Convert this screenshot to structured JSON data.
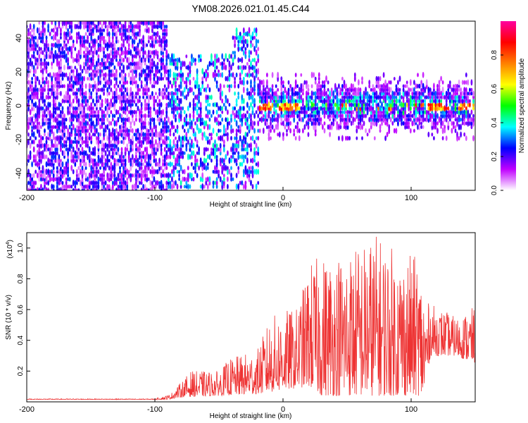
{
  "chart_data": [
    {
      "type": "heatmap",
      "title": "YM08.2026.021.01.45.C44",
      "xlabel": "Height of straight line (km)",
      "ylabel": "Frequency (Hz)",
      "xlim": [
        -200,
        150
      ],
      "ylim": [
        -50,
        50
      ],
      "x_ticks": [
        -200,
        -100,
        0,
        100
      ],
      "x_tick_labels": [
        "-200",
        "-100",
        "0",
        "100"
      ],
      "y_ticks": [
        -40,
        -20,
        0,
        20,
        40
      ],
      "y_tick_labels": [
        "-40",
        "-20",
        "0",
        "20",
        "40"
      ],
      "colorbar": {
        "label": "Normalized spectral amplitude",
        "range": [
          0.0,
          1.0
        ],
        "ticks": [
          0.0,
          0.2,
          0.4,
          0.6,
          0.8
        ],
        "tick_labels": [
          "0.0",
          "0.2",
          "0.4",
          "0.6",
          "0.8"
        ],
        "colors": [
          "#ffffff",
          "#c000ff",
          "#0000ff",
          "#00ffff",
          "#00ff00",
          "#ffff00",
          "#ff8000",
          "#ff0000",
          "#ff00a0"
        ]
      },
      "regions": [
        {
          "x_range": [
            -200,
            -90
          ],
          "freq_range": [
            -50,
            50
          ],
          "amplitude": 0.15,
          "description": "broadband noise"
        },
        {
          "x_range": [
            -90,
            -18
          ],
          "freq_range": [
            -50,
            30
          ],
          "amplitude": 0.2,
          "description": "vertical streaks"
        },
        {
          "x_range": [
            -18,
            150
          ],
          "freq_range": [
            -10,
            10
          ],
          "amplitude": 0.4,
          "description": "narrow band around 0 Hz"
        }
      ],
      "ridge": [
        {
          "x": -15,
          "f": 1,
          "a": 0.85
        },
        {
          "x": 5,
          "f": 1,
          "a": 0.8
        },
        {
          "x": 120,
          "f": 0,
          "a": 0.85
        },
        {
          "x": 145,
          "f": 0,
          "a": 0.85
        }
      ]
    },
    {
      "type": "line",
      "title": "",
      "xlabel": "Height of straight line (km)",
      "ylabel": "SNR (10 * v/v)",
      "y_multiplier": "(x10",
      "y_multiplier_exp": "4",
      "y_multiplier_close": ")",
      "xlim": [
        -200,
        150
      ],
      "ylim": [
        0,
        1.1
      ],
      "x_ticks": [
        -200,
        -100,
        0,
        100
      ],
      "x_tick_labels": [
        "-200",
        "-100",
        "0",
        "100"
      ],
      "y_ticks": [
        0.2,
        0.4,
        0.6,
        0.8,
        1.0
      ],
      "y_tick_labels": [
        "0.2",
        "0.4",
        "0.6",
        "0.8",
        "1.0"
      ],
      "color": "#ee3333",
      "envelope": [
        {
          "x": -200,
          "y": 0.02
        },
        {
          "x": -100,
          "y": 0.02
        },
        {
          "x": -88,
          "y": 0.05
        },
        {
          "x": -72,
          "y": 0.2
        },
        {
          "x": -50,
          "y": 0.2
        },
        {
          "x": -42,
          "y": 0.28
        },
        {
          "x": -20,
          "y": 0.34
        },
        {
          "x": -10,
          "y": 0.55
        },
        {
          "x": 0,
          "y": 0.6
        },
        {
          "x": 10,
          "y": 0.6
        },
        {
          "x": 22,
          "y": 0.92
        },
        {
          "x": 30,
          "y": 0.95
        },
        {
          "x": 50,
          "y": 1.0
        },
        {
          "x": 65,
          "y": 1.05
        },
        {
          "x": 72,
          "y": 1.1
        },
        {
          "x": 90,
          "y": 0.98
        },
        {
          "x": 105,
          "y": 0.95
        },
        {
          "x": 112,
          "y": 0.65
        },
        {
          "x": 125,
          "y": 0.6
        },
        {
          "x": 135,
          "y": 0.55
        },
        {
          "x": 150,
          "y": 0.62
        }
      ],
      "floor": [
        {
          "x": -200,
          "y": 0.015
        },
        {
          "x": -90,
          "y": 0.015
        },
        {
          "x": -80,
          "y": 0.03
        },
        {
          "x": -20,
          "y": 0.05
        },
        {
          "x": 20,
          "y": 0.1
        },
        {
          "x": 30,
          "y": 0.04
        },
        {
          "x": 110,
          "y": 0.04
        },
        {
          "x": 115,
          "y": 0.3
        },
        {
          "x": 135,
          "y": 0.3
        },
        {
          "x": 150,
          "y": 0.25
        }
      ]
    }
  ]
}
